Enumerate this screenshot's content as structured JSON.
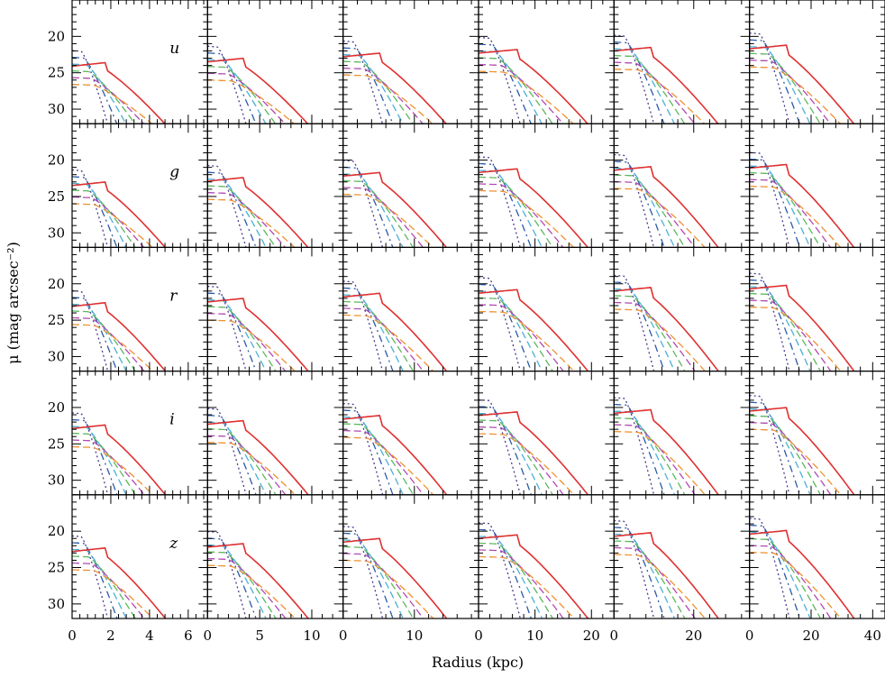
{
  "chart_data": {
    "type": "line",
    "ylabel": "μ (mag arcsec⁻²)",
    "xlabel": "Radius (kpc)",
    "grid": false,
    "y_inverted": true,
    "ylim": [
      32,
      15
    ],
    "yticks": [
      20,
      25,
      30
    ],
    "row_labels": [
      "u",
      "g",
      "r",
      "i",
      "z"
    ],
    "columns": [
      {
        "xlim": [
          0,
          7
        ],
        "xticks": [
          0,
          2,
          4,
          6
        ],
        "rmax": 5
      },
      {
        "xlim": [
          0,
          13
        ],
        "xticks": [
          0,
          5,
          10
        ],
        "rmax": 10
      },
      {
        "xlim": [
          0,
          19
        ],
        "xticks": [
          0,
          10
        ],
        "rmax": 15
      },
      {
        "xlim": [
          0,
          24
        ],
        "xticks": [
          0,
          10,
          20
        ],
        "rmax": 20
      },
      {
        "xlim": [
          0,
          34
        ],
        "xticks": [
          0,
          20
        ],
        "rmax": 27
      },
      {
        "xlim": [
          0,
          44
        ],
        "xticks": [
          0,
          20,
          40
        ],
        "rmax": 35
      }
    ],
    "series_styles": [
      {
        "color": "#4a3a8c",
        "dash": "2,3"
      },
      {
        "color": "#2a5aa8",
        "dash": "8,4,2,4"
      },
      {
        "color": "#4ab0d8",
        "dash": "8,4"
      },
      {
        "color": "#5cb85c",
        "dash": "8,4"
      },
      {
        "color": "#b04ab0",
        "dash": "8,4"
      },
      {
        "color": "#f09030",
        "dash": "8,4"
      },
      {
        "color": "#e03030",
        "dash": ""
      }
    ],
    "profile_model": {
      "total_center_by_column": [
        22.6,
        22.0,
        21.3,
        20.8,
        20.5,
        20.2
      ],
      "band_offsets": [
        1.0,
        0.4,
        0.0,
        -0.2,
        -0.3
      ],
      "component_step": 0.55,
      "curve_note": "Each panel: 7 curves (dotted, dash-dot, dashed x4, solid total) with flat inner core then steep decline to ~32 mag at increasing radius."
    }
  }
}
